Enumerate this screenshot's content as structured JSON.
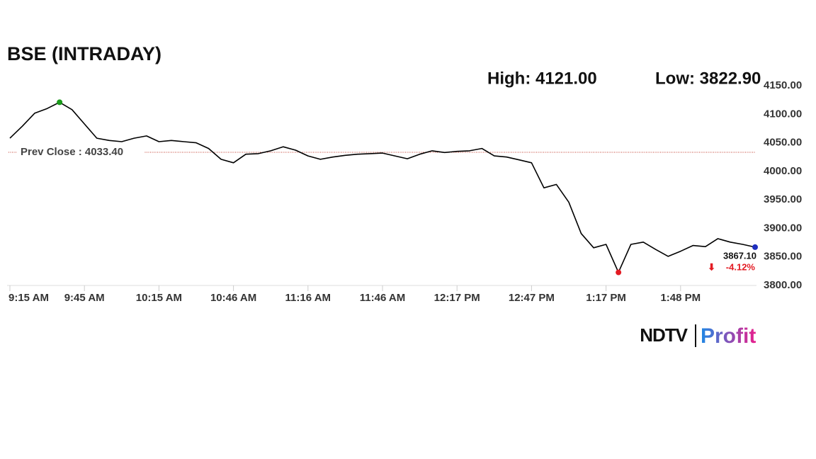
{
  "chart_data": {
    "type": "line",
    "title": "BSE (INTRADAY)",
    "high_label": "High: 4121.00",
    "low_label": "Low: 3822.90",
    "prev_close": 4033.4,
    "prev_close_label": "Prev Close : 4033.40",
    "last_label": "3867.10",
    "change_label": "-4.12%",
    "brand": "NDTV",
    "brand_suffix": "Profit",
    "color": "#000000",
    "values": [
      4058,
      4079,
      4102,
      4110,
      4121,
      4108,
      4083,
      4058,
      4054,
      4052,
      4058,
      4062,
      4052,
      4054,
      4052,
      4050,
      4040,
      4021,
      4015,
      4030,
      4031,
      4036,
      4043,
      4037,
      4027,
      4021,
      4025,
      4028,
      4030,
      4031,
      4032,
      4027,
      4022,
      4030,
      4036,
      4033,
      4035,
      4036,
      4040,
      4027,
      4025,
      4020,
      4015,
      3971,
      3977,
      3946,
      3891,
      3866,
      3872,
      3822.9,
      3872,
      3876,
      3863,
      3851,
      3860,
      3870,
      3868,
      3882,
      3876,
      3872,
      3867.1
    ],
    "xlim": [
      0,
      60
    ],
    "xticks": [
      {
        "value": 0,
        "label": "9:15 AM"
      },
      {
        "value": 6,
        "label": "9:45 AM"
      },
      {
        "value": 12,
        "label": "10:15 AM"
      },
      {
        "value": 18,
        "label": "10:46 AM"
      },
      {
        "value": 24,
        "label": "11:16 AM"
      },
      {
        "value": 30,
        "label": "11:46 AM"
      },
      {
        "value": 36,
        "label": "12:17 PM"
      },
      {
        "value": 42,
        "label": "12:47 PM"
      },
      {
        "value": 48,
        "label": "1:17 PM"
      },
      {
        "value": 54,
        "label": "1:48 PM"
      }
    ],
    "ylim": [
      3800,
      4150
    ],
    "yticks": [
      {
        "value": 3800,
        "label": "3800.00"
      },
      {
        "value": 3850,
        "label": "3850.00"
      },
      {
        "value": 3900,
        "label": "3900.00"
      },
      {
        "value": 3950,
        "label": "3950.00"
      },
      {
        "value": 4000,
        "label": "4000.00"
      },
      {
        "value": 4050,
        "label": "4050.00"
      },
      {
        "value": 4100,
        "label": "4100.00"
      },
      {
        "value": 4150,
        "label": "4150.00"
      }
    ],
    "high_index": 4,
    "low_index": 49,
    "last_index": 60
  }
}
